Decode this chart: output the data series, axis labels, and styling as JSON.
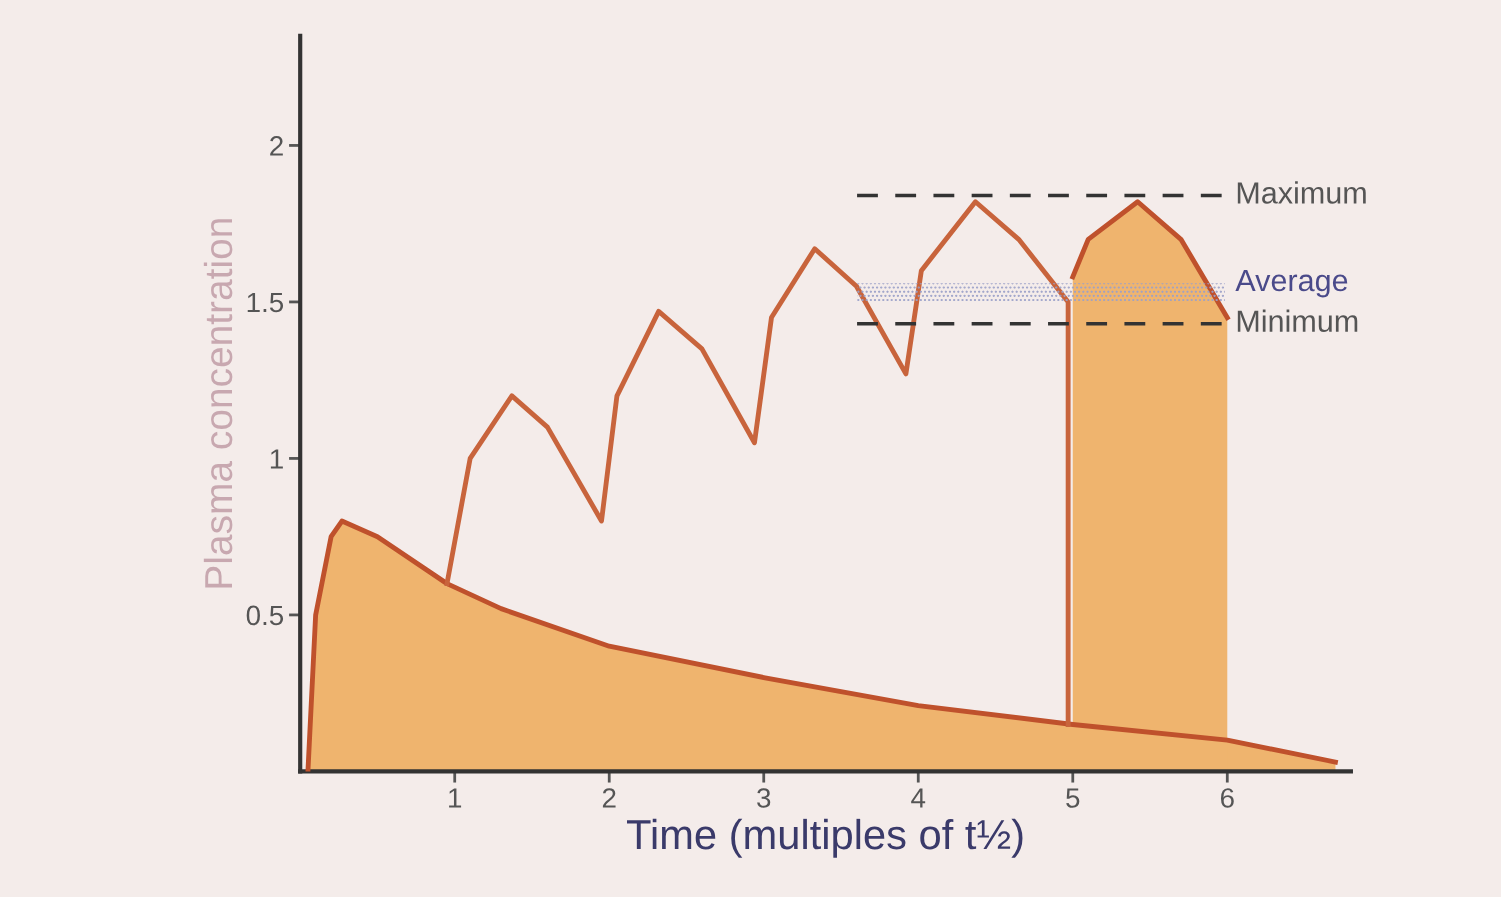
{
  "chart_data": {
    "type": "area",
    "xlabel": "Time (multiples of t½)",
    "ylabel": "Plasma concentration",
    "xlim": [
      0,
      6.8
    ],
    "xticks": [
      1,
      2,
      3,
      4,
      5,
      6
    ],
    "ylim": [
      0,
      2.35
    ],
    "yticks": [
      0.5,
      1,
      1.5,
      2
    ],
    "marker": "none",
    "line_style": "solid",
    "series": [
      {
        "color": "#efb46e",
        "x": [
          0.05,
          0.1,
          0.2,
          0.27,
          0.5,
          0.95,
          1.3,
          2,
          3,
          4,
          5,
          6,
          6.7
        ],
        "values": [
          0,
          0.5,
          0.75,
          0.8,
          0.75,
          0.6,
          0.52,
          0.4,
          0.3,
          0.21,
          0.15,
          0.1,
          0.03
        ]
      },
      {
        "type": "line",
        "color": "#c8643c",
        "x": [
          0.95,
          1.1,
          1.37,
          1.6,
          1.95,
          2.05,
          2.32,
          2.6,
          2.94,
          3.05,
          3.33,
          3.6,
          3.92,
          4.02,
          4.37,
          4.65,
          4.97,
          4.97
        ],
        "values": [
          0.6,
          1.0,
          1.2,
          1.1,
          0.8,
          1.2,
          1.47,
          1.35,
          1.05,
          1.45,
          1.67,
          1.55,
          1.27,
          1.6,
          1.82,
          1.7,
          1.5,
          0.15
        ]
      },
      {
        "color": "#efb46e",
        "x": [
          5.0,
          5.1,
          5.42,
          5.7,
          6.0
        ],
        "values": [
          1.58,
          1.7,
          1.82,
          1.7,
          1.45
        ]
      }
    ],
    "ref_lines": [
      {
        "axis": "y",
        "value": 1.84,
        "label": "Maximum",
        "color": "#333333",
        "line_style": "dashed"
      },
      {
        "axis": "y",
        "value": 1.43,
        "label": "Minimum",
        "color": "#333333",
        "line_style": "dashed"
      }
    ],
    "bands": [
      {
        "axis": "y",
        "from": 1.5,
        "to": 1.56,
        "label": "Average",
        "color": "#9aa0c8"
      }
    ]
  }
}
